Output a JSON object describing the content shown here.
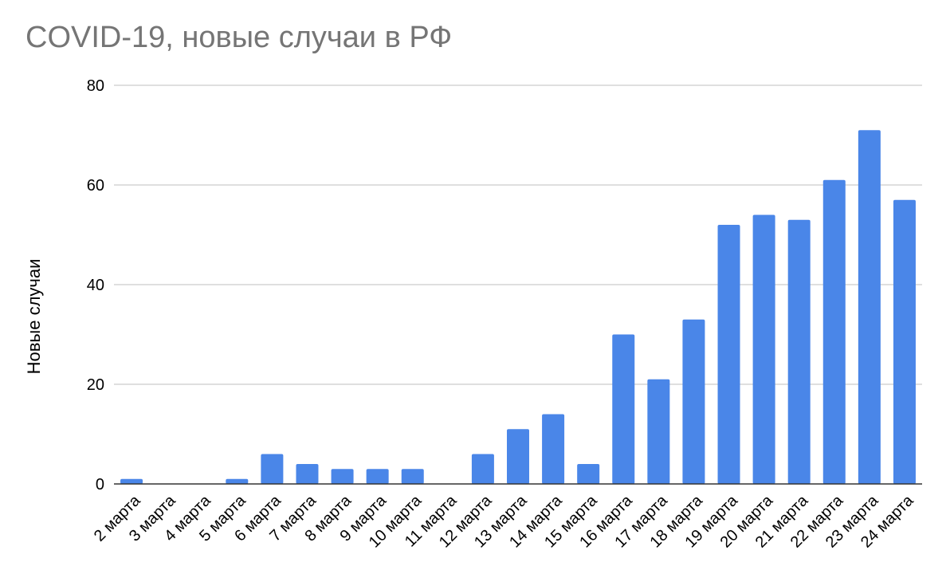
{
  "chart_data": {
    "type": "bar",
    "title": "COVID-19, новые случаи в РФ",
    "xlabel": "",
    "ylabel": "Новые случаи",
    "ylim": [
      0,
      80
    ],
    "yticks": [
      0,
      20,
      40,
      60,
      80
    ],
    "grid": true,
    "bar_color": "#4a86e8",
    "categories": [
      "2 марта",
      "3 марта",
      "4 марта",
      "5 марта",
      "6 марта",
      "7 марта",
      "8 марта",
      "9 марта",
      "10 марта",
      "11 марта",
      "12 марта",
      "13 марта",
      "14 марта",
      "15 марта",
      "16 марта",
      "17 марта",
      "18 марта",
      "19 марта",
      "20 марта",
      "21 марта",
      "22 марта",
      "23 марта",
      "24 марта"
    ],
    "values": [
      1,
      0,
      0,
      1,
      6,
      4,
      3,
      3,
      3,
      0,
      6,
      11,
      14,
      4,
      30,
      21,
      33,
      52,
      54,
      53,
      61,
      71,
      57
    ]
  }
}
